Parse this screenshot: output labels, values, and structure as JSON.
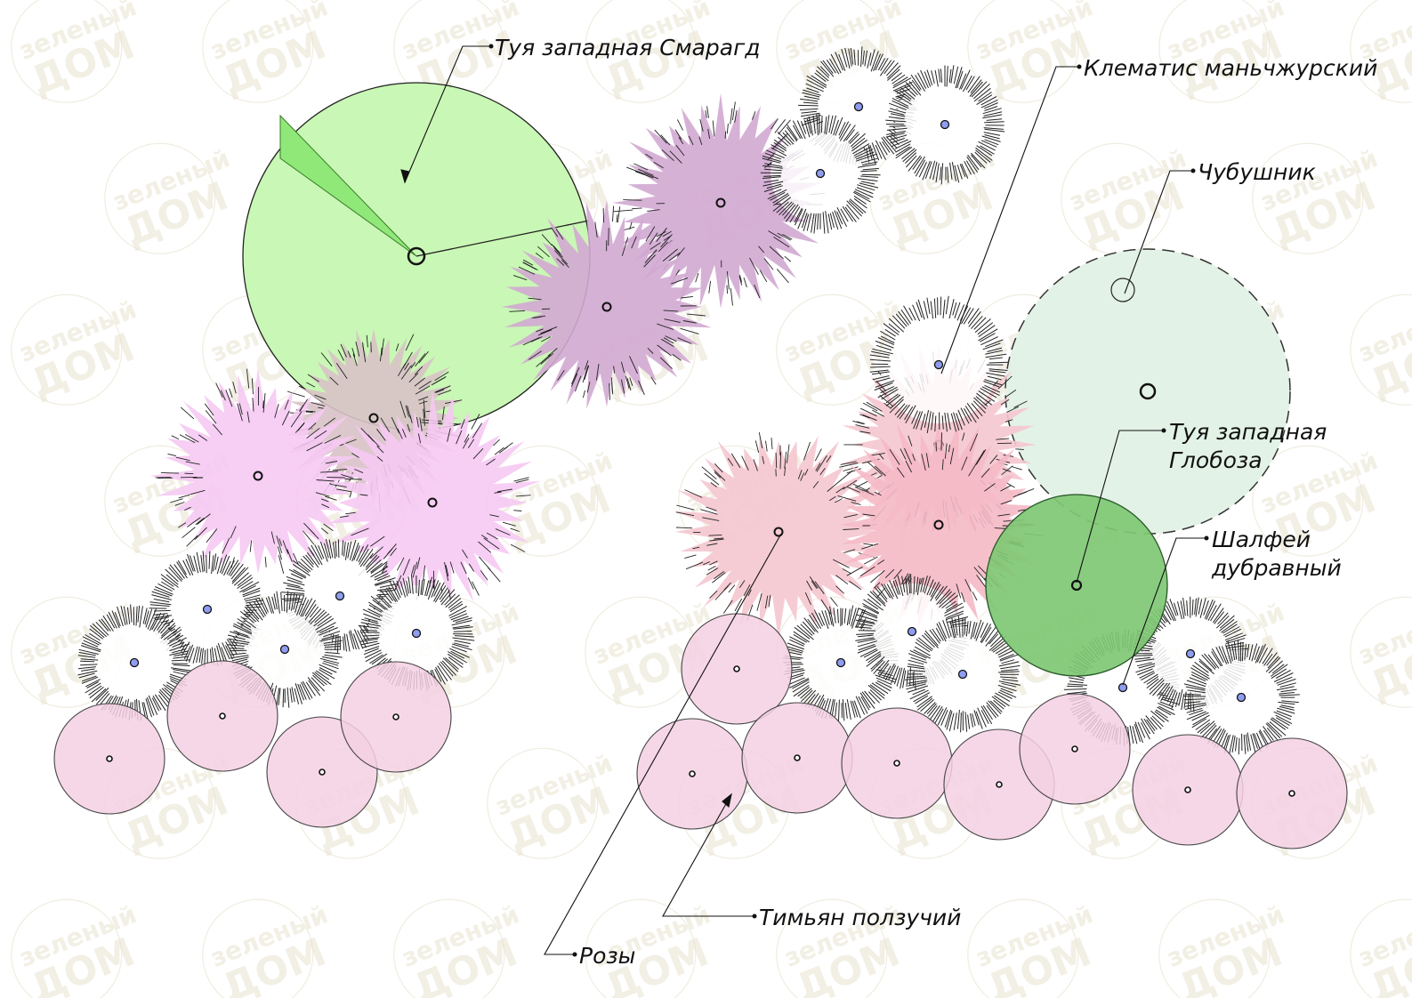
{
  "watermark": {
    "line1": "зеленый",
    "line2": "ДОМ",
    "color": "#e6dfca"
  },
  "colors": {
    "thuja_smaragd": "#c9f7b5",
    "thuja_globosa": "#7fc874",
    "mock_orange": "#e3f2e6",
    "rose": "#f4d0e3",
    "violet_shrub": "#d2a8d2",
    "pink_shrub": "#f6c9f3",
    "salmon_shrub": "#f5c6cf",
    "blue_dot": "#8f9df0",
    "outline": "#111111"
  },
  "labels": {
    "thuja_smaragd": "Туя западная Смарагд",
    "clematis": "Клематис маньчжурский",
    "mock_orange": "Чубушник",
    "thuja_globosa_1": "Туя западная",
    "thuja_globosa_2": "Глобоза",
    "salvia_1": "Шалфей",
    "salvia_2": "дубравный",
    "thyme": "Тимьян ползучий",
    "roses": "Розы"
  }
}
